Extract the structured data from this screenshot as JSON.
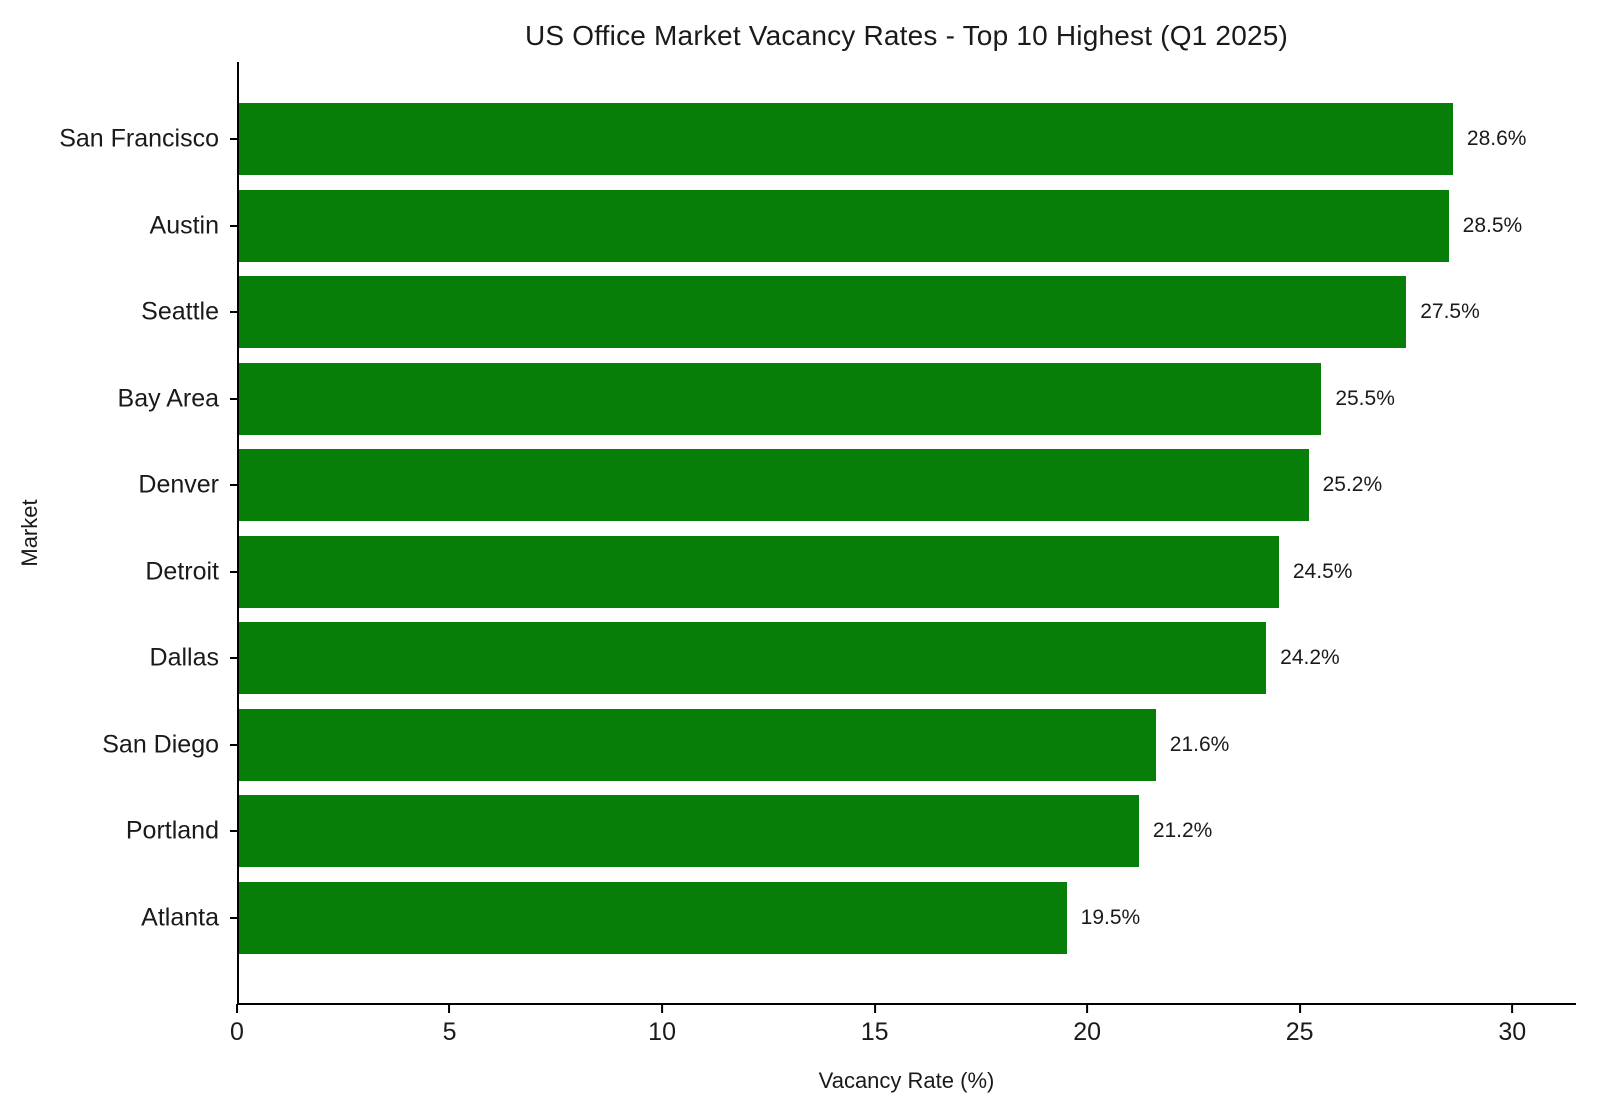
{
  "chart_data": {
    "type": "bar",
    "orientation": "horizontal",
    "title": "US Office Market Vacancy Rates - Top 10 Highest (Q1 2025)",
    "categories": [
      "San Francisco",
      "Austin",
      "Seattle",
      "Bay Area",
      "Denver",
      "Detroit",
      "Dallas",
      "San Diego",
      "Portland",
      "Atlanta"
    ],
    "values": [
      28.6,
      28.5,
      27.5,
      25.5,
      25.2,
      24.5,
      24.2,
      21.6,
      21.2,
      19.5
    ],
    "value_labels": [
      "28.6%",
      "28.5%",
      "27.5%",
      "25.5%",
      "25.2%",
      "24.5%",
      "24.2%",
      "21.6%",
      "21.2%",
      "19.5%"
    ],
    "xlabel": "Vacancy Rate (%)",
    "ylabel": "Market",
    "xlim": [
      0,
      31.5
    ],
    "xticks": [
      0,
      5,
      10,
      15,
      20,
      25,
      30
    ],
    "bar_color": "#077e07",
    "grid": false,
    "legend_position": "none"
  }
}
